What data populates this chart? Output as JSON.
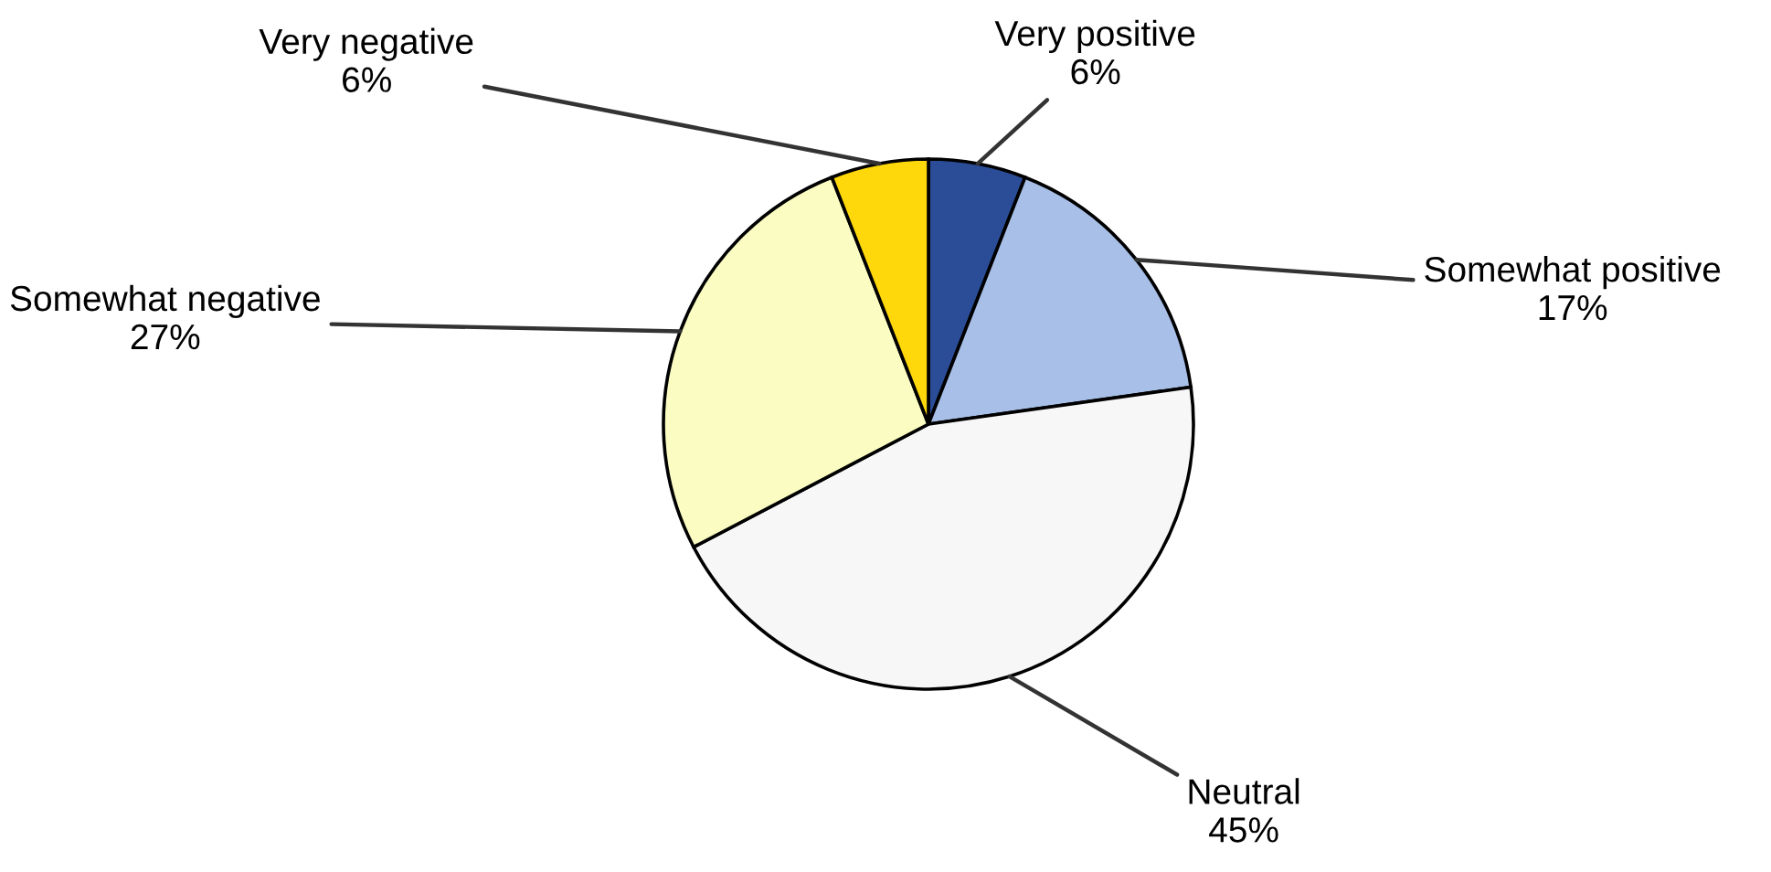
{
  "chart_data": {
    "type": "pie",
    "categories": [
      "Very positive",
      "Somewhat positive",
      "Neutral",
      "Somewhat negative",
      "Very negative"
    ],
    "values": [
      6,
      17,
      45,
      27,
      6
    ],
    "colors": [
      "#2b4c96",
      "#a8bfe8",
      "#f7f7f7",
      "#fafcc2",
      "#fed80a"
    ],
    "value_labels": [
      "6%",
      "17%",
      "45%",
      "27%",
      "6%"
    ]
  }
}
